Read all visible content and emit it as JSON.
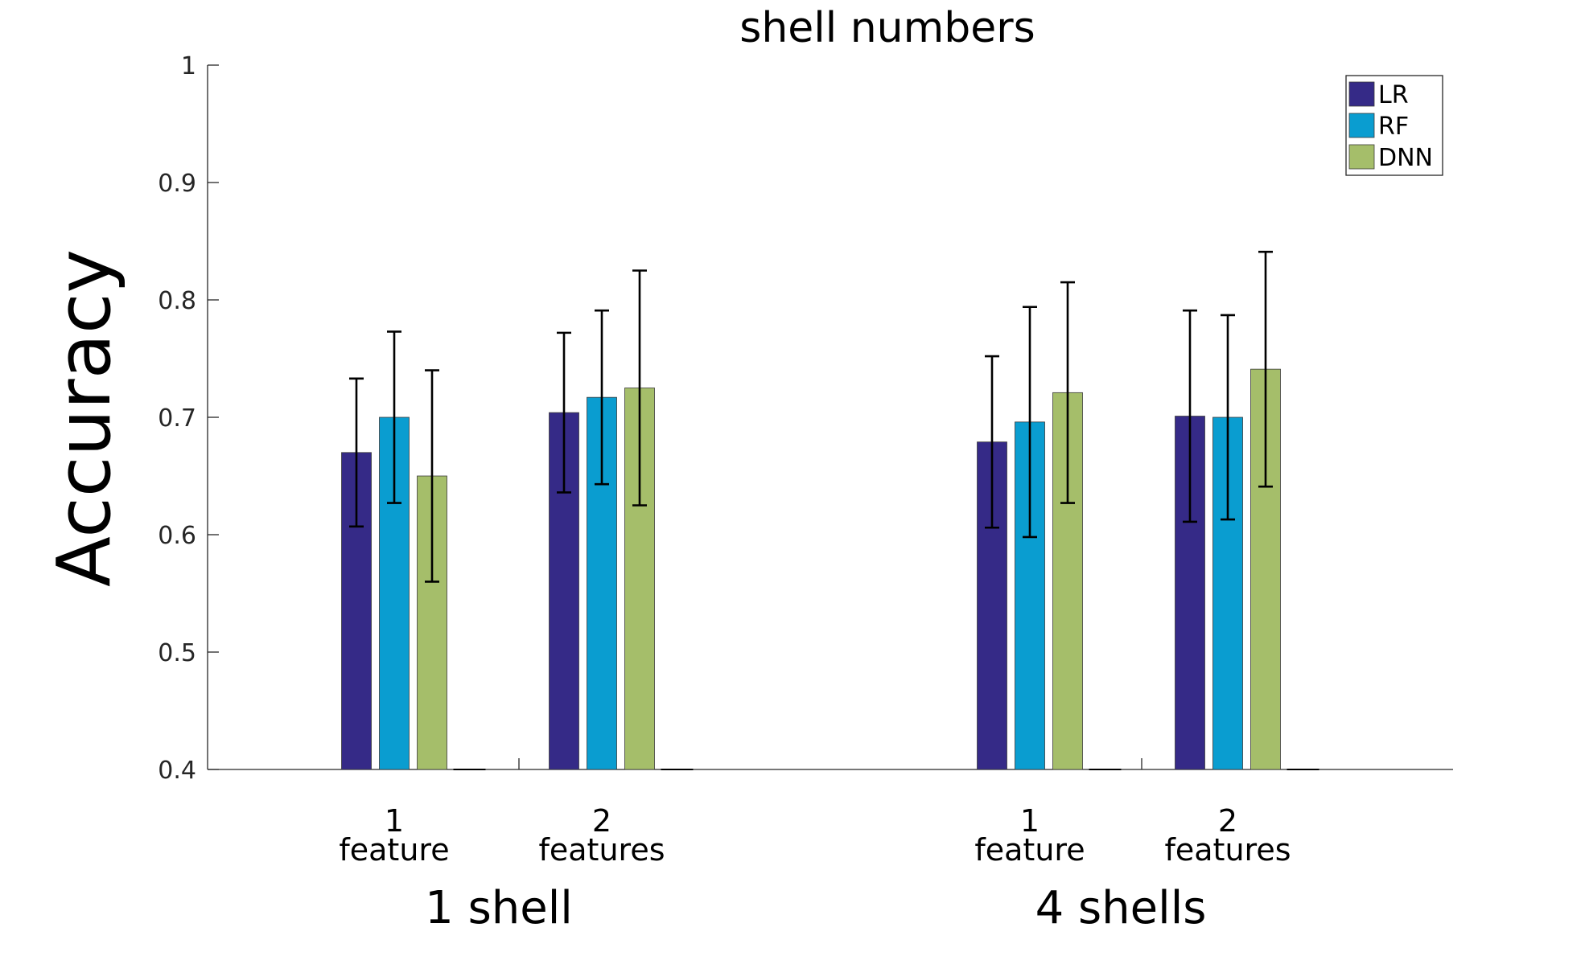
{
  "chart_data": {
    "type": "bar",
    "title": "shell numbers",
    "ylabel": "Accuracy",
    "xlabel": "",
    "ylim": [
      0.4,
      1.0
    ],
    "yticks": [
      0.4,
      0.5,
      0.6,
      0.7,
      0.8,
      0.9,
      1.0
    ],
    "ytick_labels": [
      "0.4",
      "0.5",
      "0.6",
      "0.7",
      "0.8",
      "0.9",
      "1"
    ],
    "grid": false,
    "legend_position": "top-right",
    "groups": [
      {
        "name": "1 shell",
        "categories": [
          {
            "line1": "1",
            "line2": "feature"
          },
          {
            "line1": "2",
            "line2": "features"
          }
        ]
      },
      {
        "name": "4 shells",
        "categories": [
          {
            "line1": "1",
            "line2": "feature"
          },
          {
            "line1": "2",
            "line2": "features"
          }
        ]
      }
    ],
    "series": [
      {
        "name": "LR",
        "color": "#352a87",
        "values": [
          0.67,
          0.704,
          0.679,
          0.701
        ],
        "errors": [
          0.063,
          0.068,
          0.073,
          0.09
        ]
      },
      {
        "name": "RF",
        "color": "#0a9dd0",
        "values": [
          0.7,
          0.717,
          0.696,
          0.7
        ],
        "errors": [
          0.073,
          0.074,
          0.098,
          0.087
        ]
      },
      {
        "name": "DNN",
        "color": "#a5be6a",
        "values": [
          0.65,
          0.725,
          0.721,
          0.741
        ],
        "errors": [
          0.09,
          0.1,
          0.094,
          0.1
        ]
      }
    ]
  }
}
